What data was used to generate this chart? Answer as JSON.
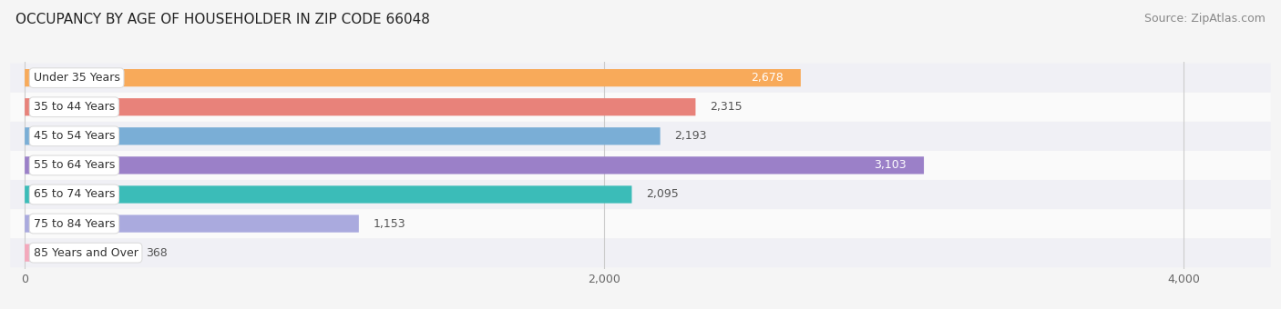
{
  "title": "OCCUPANCY BY AGE OF HOUSEHOLDER IN ZIP CODE 66048",
  "source": "Source: ZipAtlas.com",
  "categories": [
    "Under 35 Years",
    "35 to 44 Years",
    "45 to 54 Years",
    "55 to 64 Years",
    "65 to 74 Years",
    "75 to 84 Years",
    "85 Years and Over"
  ],
  "values": [
    2678,
    2315,
    2193,
    3103,
    2095,
    1153,
    368
  ],
  "bar_colors": [
    "#F8AA5A",
    "#E8827A",
    "#7AAED6",
    "#9B80C8",
    "#3BBCB8",
    "#AAAADE",
    "#F4A8BC"
  ],
  "xlim": [
    -50,
    4300
  ],
  "xticks": [
    0,
    2000,
    4000
  ],
  "background_color": "#f5f5f5",
  "row_bg_light": "#f0f0f5",
  "row_bg_white": "#fafafa",
  "bar_height": 0.6,
  "label_fontsize": 9.0,
  "cat_fontsize": 9.0,
  "title_fontsize": 11,
  "source_fontsize": 9
}
